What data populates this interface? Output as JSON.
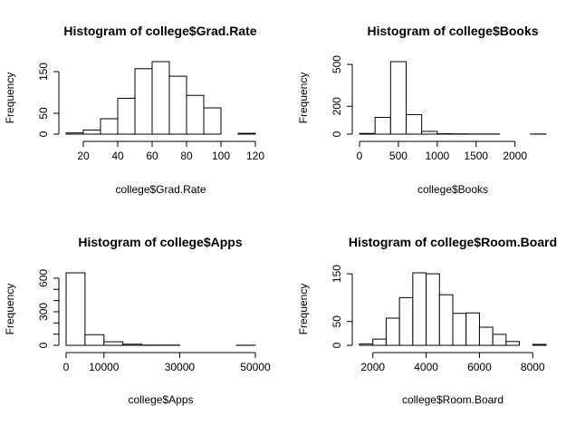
{
  "chart_data": [
    {
      "type": "bar",
      "title": "Histogram of college$Grad.Rate",
      "xlabel": "college$Grad.Rate",
      "ylabel": "Frequency",
      "bin_edges": [
        10,
        20,
        30,
        40,
        50,
        60,
        70,
        80,
        90,
        100,
        110,
        120
      ],
      "values": [
        3,
        10,
        37,
        86,
        157,
        174,
        139,
        93,
        63,
        0,
        2
      ],
      "xlim": [
        10,
        120
      ],
      "ylim": [
        0,
        174
      ],
      "xticks": [
        20,
        40,
        60,
        80,
        100,
        120
      ],
      "yticks": [
        0,
        50,
        150
      ]
    },
    {
      "type": "bar",
      "title": "Histogram of college$Books",
      "xlabel": "college$Books",
      "ylabel": "Frequency",
      "bin_edges": [
        0,
        200,
        400,
        600,
        800,
        1000,
        1200,
        1400,
        1600,
        1800,
        2000,
        2200,
        2400
      ],
      "values": [
        5,
        120,
        520,
        140,
        20,
        3,
        2,
        1,
        1,
        0,
        0,
        1
      ],
      "xlim": [
        0,
        2400
      ],
      "ylim": [
        0,
        520
      ],
      "xticks": [
        0,
        500,
        1000,
        1500,
        2000
      ],
      "yticks": [
        0,
        200,
        500
      ]
    },
    {
      "type": "bar",
      "title": "Histogram of college$Apps",
      "xlabel": "college$Apps",
      "ylabel": "Frequency",
      "bin_edges": [
        0,
        5000,
        10000,
        15000,
        20000,
        25000,
        30000,
        35000,
        40000,
        45000,
        50000
      ],
      "values": [
        648,
        95,
        32,
        10,
        2,
        2,
        0,
        0,
        0,
        1
      ],
      "xlim": [
        0,
        50000
      ],
      "ylim": [
        0,
        648
      ],
      "xticks": [
        0,
        10000,
        30000,
        50000
      ],
      "yticks": [
        0,
        100,
        200,
        300,
        400,
        500,
        600
      ],
      "ytick_labels": [
        "0",
        "",
        "",
        "300",
        "",
        "",
        "600"
      ]
    },
    {
      "type": "bar",
      "title": "Histogram of college$Room.Board",
      "xlabel": "college$Room.Board",
      "ylabel": "Frequency",
      "bin_edges": [
        1500,
        2000,
        2500,
        3000,
        3500,
        4000,
        4500,
        5000,
        5500,
        6000,
        6500,
        7000,
        7500,
        8000,
        8500
      ],
      "values": [
        3,
        13,
        57,
        100,
        152,
        150,
        106,
        67,
        68,
        38,
        23,
        8,
        0,
        2
      ],
      "xlim": [
        1500,
        8500
      ],
      "ylim": [
        0,
        152
      ],
      "xticks": [
        2000,
        4000,
        6000,
        8000
      ],
      "yticks": [
        0,
        50,
        150
      ]
    }
  ]
}
